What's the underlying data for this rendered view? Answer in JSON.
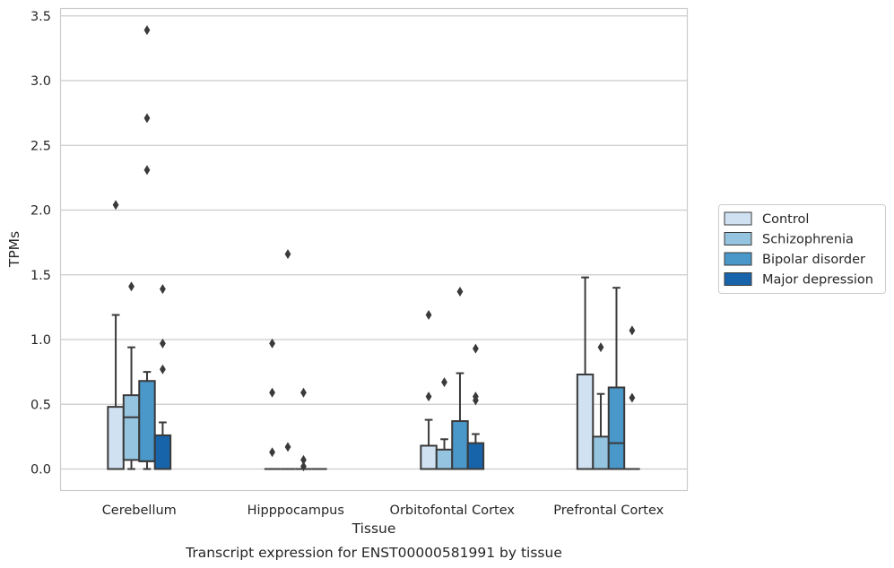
{
  "chart_data": {
    "type": "box",
    "xlabel": "Tissue",
    "ylabel": "TPMs",
    "caption": "Transcript expression for ENST00000581991 by tissue",
    "ylim": [
      -0.17,
      3.57
    ],
    "yticks": [
      "0.0",
      "0.5",
      "1.0",
      "1.5",
      "2.0",
      "2.5",
      "3.0",
      "3.5"
    ],
    "ytick_values": [
      0,
      0.5,
      1,
      1.5,
      2,
      2.5,
      3,
      3.5
    ],
    "grid": "horizontal",
    "legend_position": "right",
    "categories": [
      "Cerebellum",
      "Hipppocampus",
      "Orbitofontal Cortex",
      "Prefrontal Cortex"
    ],
    "series": [
      {
        "name": "Control",
        "color": "#d0e1f2",
        "boxes": [
          {
            "q1": 0,
            "median": 0,
            "q3": 0.48,
            "whisker_low": 0,
            "whisker_high": 1.19,
            "outliers": [
              2.04
            ]
          },
          {
            "q1": 0,
            "median": 0,
            "q3": 0,
            "whisker_low": 0,
            "whisker_high": 0,
            "outliers": [
              0.13,
              0.59,
              0.97
            ]
          },
          {
            "q1": 0,
            "median": 0,
            "q3": 0.18,
            "whisker_low": 0,
            "whisker_high": 0.38,
            "outliers": [
              0.56,
              1.19
            ]
          },
          {
            "q1": 0,
            "median": 0,
            "q3": 0.73,
            "whisker_low": 0,
            "whisker_high": 1.48,
            "outliers": []
          }
        ]
      },
      {
        "name": "Schizophrenia",
        "color": "#94c4df",
        "boxes": [
          {
            "q1": 0.07,
            "median": 0.4,
            "q3": 0.57,
            "whisker_low": 0,
            "whisker_high": 0.94,
            "outliers": [
              1.41
            ]
          },
          {
            "q1": 0,
            "median": 0,
            "q3": 0,
            "whisker_low": 0,
            "whisker_high": 0,
            "outliers": [
              0.17,
              1.66
            ]
          },
          {
            "q1": 0,
            "median": 0,
            "q3": 0.15,
            "whisker_low": 0,
            "whisker_high": 0.23,
            "outliers": [
              0.67
            ]
          },
          {
            "q1": 0,
            "median": 0,
            "q3": 0.25,
            "whisker_low": 0,
            "whisker_high": 0.58,
            "outliers": [
              0.94
            ]
          }
        ]
      },
      {
        "name": "Bipolar disorder",
        "color": "#4a98c9",
        "boxes": [
          {
            "q1": 0.06,
            "median": 0.06,
            "q3": 0.68,
            "whisker_low": 0,
            "whisker_high": 0.75,
            "outliers": [
              2.31,
              2.71,
              3.39
            ]
          },
          {
            "q1": 0,
            "median": 0,
            "q3": 0,
            "whisker_low": 0,
            "whisker_high": 0,
            "outliers": [
              0.02,
              0.07,
              0.59
            ]
          },
          {
            "q1": 0,
            "median": 0,
            "q3": 0.37,
            "whisker_low": 0,
            "whisker_high": 0.74,
            "outliers": [
              1.37
            ]
          },
          {
            "q1": 0,
            "median": 0.2,
            "q3": 0.63,
            "whisker_low": 0,
            "whisker_high": 1.4,
            "outliers": []
          }
        ]
      },
      {
        "name": "Major depression",
        "color": "#1764ab",
        "boxes": [
          {
            "q1": 0,
            "median": 0,
            "q3": 0.26,
            "whisker_low": 0,
            "whisker_high": 0.36,
            "outliers": [
              0.77,
              0.97,
              1.39
            ]
          },
          {
            "q1": 0,
            "median": 0,
            "q3": 0,
            "whisker_low": 0,
            "whisker_high": 0,
            "outliers": []
          },
          {
            "q1": 0,
            "median": 0,
            "q3": 0.2,
            "whisker_low": 0,
            "whisker_high": 0.27,
            "outliers": [
              0.53,
              0.56,
              0.93
            ]
          },
          {
            "q1": 0,
            "median": 0,
            "q3": 0,
            "whisker_low": 0,
            "whisker_high": 0,
            "outliers": [
              0.55,
              1.07
            ]
          }
        ]
      }
    ]
  }
}
